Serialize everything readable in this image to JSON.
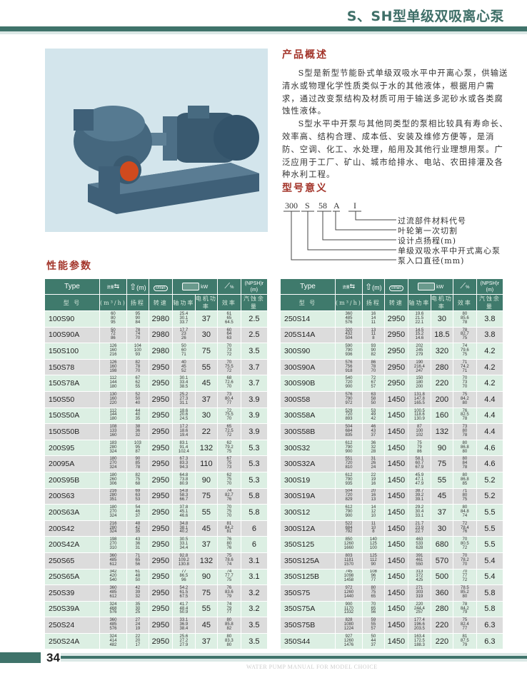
{
  "header": {
    "title": "S、SH型单级双吸离心泵"
  },
  "overview": {
    "heading": "产品概述",
    "paragraphs": [
      "S型是新型节能卧式单级双吸水平中开离心泵，供输送清水或物理化学性质类似于水的其他液体，根据用户需求，通过改变泵结构及材质可用于输送多泥砂水或各类腐蚀性液体。",
      "S型水平中开泵与其他同类型的泵相比较具有寿命长、效率高、结构合理、成本低、安装及维修方便等，是消防、空调、化工、水处理，船用及其他行业理想用泵。广泛应用于工厂、矿山、城市给排水、电站、农田排灌及各种水利工程。"
    ]
  },
  "model_meaning": {
    "heading": "型号意义",
    "codes": [
      "300",
      "S",
      "58",
      "A",
      "I"
    ],
    "labels": [
      "过流部件材料代号",
      "叶轮第一次切割",
      "设计点扬程(m)",
      "单级双吸水平中开式离心泵",
      "泵入口直径(mm)"
    ]
  },
  "performance": {
    "heading": "性能参数"
  },
  "table_header": {
    "type": "Type",
    "flow_icon_text": "流量",
    "head_unit": "(m)",
    "speed_icon_text": "r/min",
    "power_unit": "kW",
    "eff_unit": "%",
    "npsh": "(NPSH)r",
    "npsh_unit": "(m)",
    "sub": [
      "型 号",
      "(m³/h)",
      "扬程",
      "转速",
      "轴功率",
      "电机功率",
      "效率",
      "汽蚀余量"
    ]
  },
  "colors": {
    "header_green": "#3f7a6c",
    "row_green": "#dcefe3",
    "row_grey": "#dcdcdc",
    "heading_red": "#a3352b"
  },
  "left": {
    "rows": [
      {
        "type": "100S90",
        "flow": [
          "60",
          "80",
          "95"
        ],
        "head": [
          "95",
          "90",
          "84"
        ],
        "speed": "2980",
        "shaft": [
          "25.4",
          "30.1",
          "33.7"
        ],
        "motor": "37",
        "eff": [
          "61",
          "65",
          "64.5"
        ],
        "npsh": "2.5"
      },
      {
        "type": "100S90A",
        "flow": [
          "50",
          "72",
          "86"
        ],
        "head": [
          "78",
          "74",
          "70"
        ],
        "speed": "2980",
        "shaft": [
          "17.7",
          "23",
          "26"
        ],
        "motor": "30",
        "eff": [
          "60",
          "64",
          "63"
        ],
        "npsh": "2.5"
      },
      {
        "type": "150S100",
        "flow": [
          "126",
          "160",
          "216"
        ],
        "head": [
          "104",
          "100",
          "93"
        ],
        "speed": "2980",
        "shaft": [
          "50",
          "60",
          "71"
        ],
        "motor": "75",
        "eff": [
          "70",
          "73",
          "72"
        ],
        "npsh": "3.5"
      },
      {
        "type": "150S78",
        "flow": [
          "126",
          "160",
          "198"
        ],
        "head": [
          "82",
          "78",
          "70"
        ],
        "speed": "2950",
        "shaft": [
          "40",
          "45",
          "52"
        ],
        "motor": "55",
        "eff": [
          "70",
          "75.5",
          "72"
        ],
        "npsh": "3.7"
      },
      {
        "type": "150S78A",
        "flow": [
          "112",
          "144",
          "180"
        ],
        "head": [
          "67",
          "62",
          "55"
        ],
        "speed": "2950",
        "shaft": [
          "30.1",
          "33.4",
          "38.5"
        ],
        "motor": "45",
        "eff": [
          "68",
          "72.6",
          "70"
        ],
        "npsh": "3.7"
      },
      {
        "type": "150S50",
        "flow": [
          "130",
          "160",
          "220"
        ],
        "head": [
          "52",
          "50",
          "40"
        ],
        "speed": "2950",
        "shaft": [
          "25.2",
          "27.3",
          "31.1"
        ],
        "motor": "37",
        "eff": [
          "73",
          "80.4",
          "77"
        ],
        "npsh": "3.9"
      },
      {
        "type": "150S50A",
        "flow": [
          "112",
          "144",
          "180"
        ],
        "head": [
          "44",
          "40",
          "35"
        ],
        "speed": "2950",
        "shaft": [
          "18.6",
          "20.6",
          "24.5"
        ],
        "motor": "30",
        "eff": [
          "72",
          "75.5",
          "70"
        ],
        "npsh": "3.9"
      },
      {
        "type": "150S50B",
        "flow": [
          "108",
          "133",
          "160"
        ],
        "head": [
          "38",
          "36",
          "32"
        ],
        "speed": "2950",
        "shaft": [
          "17.2",
          "18.6",
          "19.4"
        ],
        "motor": "22",
        "eff": [
          "65",
          "72.5",
          "72"
        ],
        "npsh": "3.9"
      },
      {
        "type": "200S95",
        "flow": [
          "183",
          "280",
          "324"
        ],
        "head": [
          "103",
          "95",
          "87"
        ],
        "speed": "2950",
        "shaft": [
          "83.1",
          "91.4",
          "102.4"
        ],
        "motor": "132",
        "eff": [
          "62",
          "79.2",
          "75"
        ],
        "npsh": "5.3"
      },
      {
        "type": "20095A",
        "flow": [
          "180",
          "270",
          "324"
        ],
        "head": [
          "90",
          "85",
          "78"
        ],
        "speed": "2950",
        "shaft": [
          "67.3",
          "83.3",
          "94.3"
        ],
        "motor": "110",
        "eff": [
          "67",
          "75",
          "73"
        ],
        "npsh": "5.3"
      },
      {
        "type": "200S95B",
        "flow": [
          "180",
          "260",
          "306"
        ],
        "head": [
          "82",
          "75",
          "68"
        ],
        "speed": "2950",
        "shaft": [
          "64.8",
          "73.8",
          "80.9"
        ],
        "motor": "90",
        "eff": [
          "62",
          "75",
          "70"
        ],
        "npsh": "5.3"
      },
      {
        "type": "200S63",
        "flow": [
          "216",
          "280",
          "351"
        ],
        "head": [
          "69",
          "63",
          "53"
        ],
        "speed": "2950",
        "shaft": [
          "54.8",
          "58.3",
          "66.7"
        ],
        "motor": "75",
        "eff": [
          "74",
          "82.7",
          "76"
        ],
        "npsh": "5.8"
      },
      {
        "type": "200S63A",
        "flow": [
          "180",
          "270",
          "324"
        ],
        "head": [
          "54",
          "46",
          "37"
        ],
        "speed": "2950",
        "shaft": [
          "37.8",
          "45.1",
          "46.6"
        ],
        "motor": "55",
        "eff": [
          "70",
          "75",
          "70"
        ],
        "npsh": "5.8"
      },
      {
        "type": "200S42",
        "flow": [
          "216",
          "280",
          "324"
        ],
        "head": [
          "48",
          "42",
          "35"
        ],
        "speed": "2950",
        "shaft": [
          "34.8",
          "38.1",
          "40.2"
        ],
        "motor": "45",
        "eff": [
          "81",
          "84.2",
          "81"
        ],
        "npsh": "6"
      },
      {
        "type": "200S42A",
        "flow": [
          "198",
          "270",
          "310"
        ],
        "head": [
          "43",
          "36",
          "31"
        ],
        "speed": "2950",
        "shaft": [
          "30.5",
          "33.1",
          "34.4"
        ],
        "motor": "37",
        "eff": [
          "76",
          "80",
          "76"
        ],
        "npsh": "6"
      },
      {
        "type": "250S65",
        "flow": [
          "360",
          "485",
          "612"
        ],
        "head": [
          "71",
          "65",
          "56"
        ],
        "speed": "2950",
        "shaft": [
          "92.8",
          "109.2",
          "130.8"
        ],
        "motor": "132",
        "eff": [
          "75",
          "78.6",
          "74"
        ],
        "npsh": "3.1"
      },
      {
        "type": "250S65A",
        "flow": [
          "342",
          "420",
          "540"
        ],
        "head": [
          "61",
          "48",
          "50"
        ],
        "speed": "2950",
        "shaft": [
          "77",
          "86.5",
          "96"
        ],
        "motor": "90",
        "eff": [
          "74",
          "77.7",
          "75"
        ],
        "npsh": "3.1"
      },
      {
        "type": "250S39",
        "flow": [
          "360",
          "485",
          "612"
        ],
        "head": [
          "42",
          "39",
          "32"
        ],
        "speed": "2950",
        "shaft": [
          "54.2",
          "61.5",
          "67.5"
        ],
        "motor": "75",
        "eff": [
          "76",
          "83.6",
          "79"
        ],
        "npsh": "3.2"
      },
      {
        "type": "250S39A",
        "flow": [
          "324",
          "468",
          "576"
        ],
        "head": [
          "35",
          "30",
          "25"
        ],
        "speed": "2950",
        "shaft": [
          "41.7",
          "48.4",
          "50.9"
        ],
        "motor": "55",
        "eff": [
          "74",
          "79",
          "77"
        ],
        "npsh": "3.2"
      },
      {
        "type": "250S24",
        "flow": [
          "360",
          "485",
          "576"
        ],
        "head": [
          "27",
          "24",
          "19"
        ],
        "speed": "2950",
        "shaft": [
          "33.1",
          "36.9",
          "38.4"
        ],
        "motor": "45",
        "eff": [
          "80",
          "85.8",
          "82"
        ],
        "npsh": "3.5"
      },
      {
        "type": "250S24A",
        "flow": [
          "324",
          "414",
          "482"
        ],
        "head": [
          "22",
          "20",
          "17"
        ],
        "speed": "2950",
        "shaft": [
          "25.6",
          "27.2",
          "27.9"
        ],
        "motor": "37",
        "eff": [
          "80",
          "83.3",
          "80"
        ],
        "npsh": "3.5"
      }
    ]
  },
  "right": {
    "rows": [
      {
        "type": "250S14",
        "flow": [
          "360",
          "485",
          "576"
        ],
        "head": [
          "16",
          "14",
          "11"
        ],
        "speed": "2950",
        "shaft": [
          "19.6",
          "21.5",
          "22.1"
        ],
        "motor": "30",
        "eff": [
          "80",
          "85.6",
          "78"
        ],
        "npsh": "3.8"
      },
      {
        "type": "205S14A",
        "flow": [
          "320",
          "432",
          "504"
        ],
        "head": [
          "13",
          "11",
          "8"
        ],
        "speed": "2950",
        "shaft": [
          "14.5",
          "15.2",
          "14.6"
        ],
        "motor": "18.5",
        "eff": [
          "78",
          "82.7",
          "75"
        ],
        "npsh": "3.8"
      },
      {
        "type": "300S90",
        "flow": [
          "590",
          "790",
          "936"
        ],
        "head": [
          "93",
          "90",
          "82"
        ],
        "speed": "2950",
        "shaft": [
          "202",
          "245",
          "279"
        ],
        "motor": "320",
        "eff": [
          "74",
          "79.6",
          "75"
        ],
        "npsh": "4.2"
      },
      {
        "type": "300S90A",
        "flow": [
          "576",
          "756",
          "918"
        ],
        "head": [
          "86",
          "78",
          "70"
        ],
        "speed": "2950",
        "shaft": [
          "190",
          "216.4",
          "247"
        ],
        "motor": "280",
        "eff": [
          "71",
          "74.2",
          "71"
        ],
        "npsh": "4.2"
      },
      {
        "type": "300S90B",
        "flow": [
          "540",
          "720",
          "900"
        ],
        "head": [
          "72",
          "67",
          "57"
        ],
        "speed": "2950",
        "shaft": [
          "150",
          "180",
          "200"
        ],
        "motor": "220",
        "eff": [
          "70",
          "73",
          "70"
        ],
        "npsh": "4.2"
      },
      {
        "type": "300S58",
        "flow": [
          "576",
          "790",
          "972"
        ],
        "head": [
          "63",
          "58",
          "50"
        ],
        "speed": "1450",
        "shaft": [
          "131.8",
          "147.8",
          "165.5"
        ],
        "motor": "200",
        "eff": [
          "75",
          "84.2",
          "80"
        ],
        "npsh": "4.4"
      },
      {
        "type": "300S58A",
        "flow": [
          "529",
          "720",
          "893"
        ],
        "head": [
          "53",
          "49",
          "42"
        ],
        "speed": "1450",
        "shaft": [
          "100.5",
          "118.6",
          "130.9"
        ],
        "motor": "160",
        "eff": [
          "76",
          "82.5",
          "78"
        ],
        "npsh": "4.4"
      },
      {
        "type": "300S58B",
        "flow": [
          "504",
          "684",
          "835"
        ],
        "head": [
          "46",
          "43",
          "37"
        ],
        "speed": "1450",
        "shaft": [
          "87",
          "100",
          "102"
        ],
        "motor": "132",
        "eff": [
          "73",
          "80",
          "78"
        ],
        "npsh": "4.4"
      },
      {
        "type": "300S32",
        "flow": [
          "612",
          "790",
          "900"
        ],
        "head": [
          "36",
          "32",
          "28"
        ],
        "speed": "1450",
        "shaft": [
          "75",
          "79",
          "86"
        ],
        "motor": "90",
        "eff": [
          "80",
          "86.8",
          "80"
        ],
        "npsh": "4.6"
      },
      {
        "type": "300S32A",
        "flow": [
          "551",
          "720",
          "810"
        ],
        "head": [
          "31",
          "26",
          "24"
        ],
        "speed": "1450",
        "shaft": [
          "58.1",
          "60.7",
          "67.9"
        ],
        "motor": "75",
        "eff": [
          "80",
          "84",
          "78"
        ],
        "npsh": "4.6"
      },
      {
        "type": "300S19",
        "flow": [
          "612",
          "790",
          "935"
        ],
        "head": [
          "22",
          "19",
          "16"
        ],
        "speed": "1450",
        "shaft": [
          "45.9",
          "47.1",
          "47.9"
        ],
        "motor": "55",
        "eff": [
          "80",
          "86.8",
          "85"
        ],
        "npsh": "5.2"
      },
      {
        "type": "300S19A",
        "flow": [
          "504",
          "720",
          "829"
        ],
        "head": [
          "20",
          "16",
          "13"
        ],
        "speed": "1450",
        "shaft": [
          "38.7",
          "39.2",
          "39.1"
        ],
        "motor": "45",
        "eff": [
          "71",
          "80",
          "75"
        ],
        "npsh": "5.2"
      },
      {
        "type": "300S12",
        "flow": [
          "612",
          "790",
          "900"
        ],
        "head": [
          "14",
          "12",
          "10"
        ],
        "speed": "1450",
        "shaft": [
          "29.2",
          "30.4",
          "33.1"
        ],
        "motor": "37",
        "eff": [
          "80",
          "84.8",
          "74"
        ],
        "npsh": "5.5"
      },
      {
        "type": "300S12A",
        "flow": [
          "522",
          "684",
          "792"
        ],
        "head": [
          "11",
          "10",
          "8"
        ],
        "speed": "1450",
        "shaft": [
          "21.7",
          "23.9",
          "22.7"
        ],
        "motor": "30",
        "eff": [
          "72",
          "78.4",
          "76"
        ],
        "npsh": "5.5"
      },
      {
        "type": "350S125",
        "flow": [
          "850",
          "1260",
          "1660"
        ],
        "head": [
          "140",
          "125",
          "100"
        ],
        "speed": "1450",
        "shaft": [
          "463",
          "533",
          "628"
        ],
        "motor": "680",
        "eff": [
          "70",
          "80.5",
          "72"
        ],
        "npsh": "5.5"
      },
      {
        "type": "350S125A",
        "flow": [
          "803",
          "1181",
          "1570"
        ],
        "head": [
          "125",
          "112",
          "90"
        ],
        "speed": "1450",
        "shaft": [
          "391",
          "461",
          "550"
        ],
        "motor": "570",
        "eff": [
          "70",
          "78.2",
          "70"
        ],
        "npsh": "5.4"
      },
      {
        "type": "350S125B",
        "flow": [
          "745",
          "1098",
          "1458"
        ],
        "head": [
          "108",
          "96",
          "77"
        ],
        "speed": "1450",
        "shaft": [
          "313",
          "372",
          "425"
        ],
        "motor": "500",
        "eff": [
          "70",
          "77",
          "72"
        ],
        "npsh": "5.4"
      },
      {
        "type": "350S75",
        "flow": [
          "972",
          "1260",
          "1440"
        ],
        "head": [
          "80",
          "75",
          "65"
        ],
        "speed": "1450",
        "shaft": [
          "271",
          "303",
          "319"
        ],
        "motor": "360",
        "eff": [
          "78.5",
          "85.2",
          "80"
        ],
        "npsh": "5.8"
      },
      {
        "type": "350S75A",
        "flow": [
          "900",
          "1170",
          "1332"
        ],
        "head": [
          "70",
          "65",
          "56"
        ],
        "speed": "1450",
        "shaft": [
          "220",
          "244.4",
          "257"
        ],
        "motor": "280",
        "eff": [
          "78",
          "84.2",
          "79"
        ],
        "npsh": "5.8"
      },
      {
        "type": "350S75B",
        "flow": [
          "828",
          "1080",
          "1224"
        ],
        "head": [
          "59",
          "55",
          "57"
        ],
        "speed": "1450",
        "shaft": [
          "177.4",
          "196.6",
          "203.5"
        ],
        "motor": "220",
        "eff": [
          "75",
          "82.4",
          "77"
        ],
        "npsh": "6.3"
      },
      {
        "type": "350S44",
        "flow": [
          "927",
          "1260",
          "1476"
        ],
        "head": [
          "50",
          "44",
          "37"
        ],
        "speed": "1450",
        "shaft": [
          "163.4",
          "172.5",
          "188.3"
        ],
        "motor": "220",
        "eff": [
          "81",
          "87.5",
          "79"
        ],
        "npsh": "6.3"
      }
    ]
  },
  "footer": {
    "page_number": "34",
    "tagline": "WATER PUMP MANUAL FOR MODEL CHOICE"
  }
}
